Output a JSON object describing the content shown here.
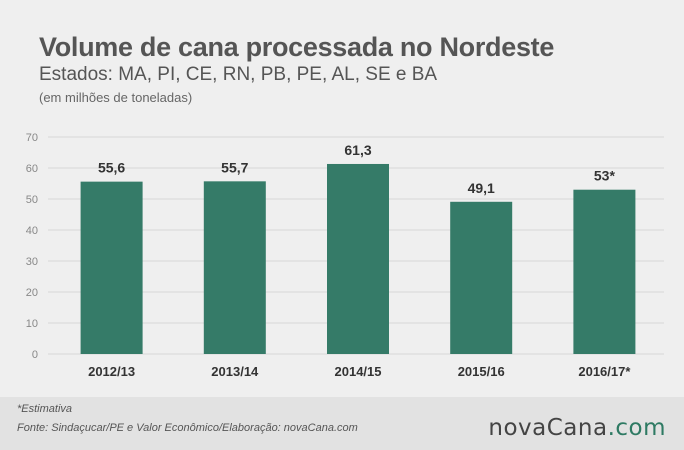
{
  "title": "Volume de cana processada no Nordeste",
  "subtitle": "Estados: MA, PI, CE, RN, PB, PE, AL, SE e BA",
  "unit_note": "(em milhões de toneladas)",
  "footer": {
    "estimate_note": "*Estimativa",
    "source": "Fonte: Sindaçucar/PE e Valor Econômico/Elaboração: novaCana.com",
    "brand_main": "novaCana",
    "brand_suffix": ".com"
  },
  "colors": {
    "bar": "#357b68",
    "grid": "#d7d7d7",
    "axis_text": "#888888",
    "value_text": "#333333"
  },
  "chart_data": {
    "type": "bar",
    "categories": [
      "2012/13",
      "2013/14",
      "2014/15",
      "2015/16",
      "2016/17*"
    ],
    "values": [
      55.6,
      55.7,
      61.3,
      49.1,
      53
    ],
    "value_labels": [
      "55,6",
      "55,7",
      "61,3",
      "49,1",
      "53*"
    ],
    "title": "Volume de cana processada no Nordeste",
    "xlabel": "",
    "ylabel": "",
    "ylim": [
      0,
      70
    ],
    "yticks": [
      0,
      10,
      20,
      30,
      40,
      50,
      60,
      70
    ],
    "grid": true,
    "legend": "none"
  }
}
